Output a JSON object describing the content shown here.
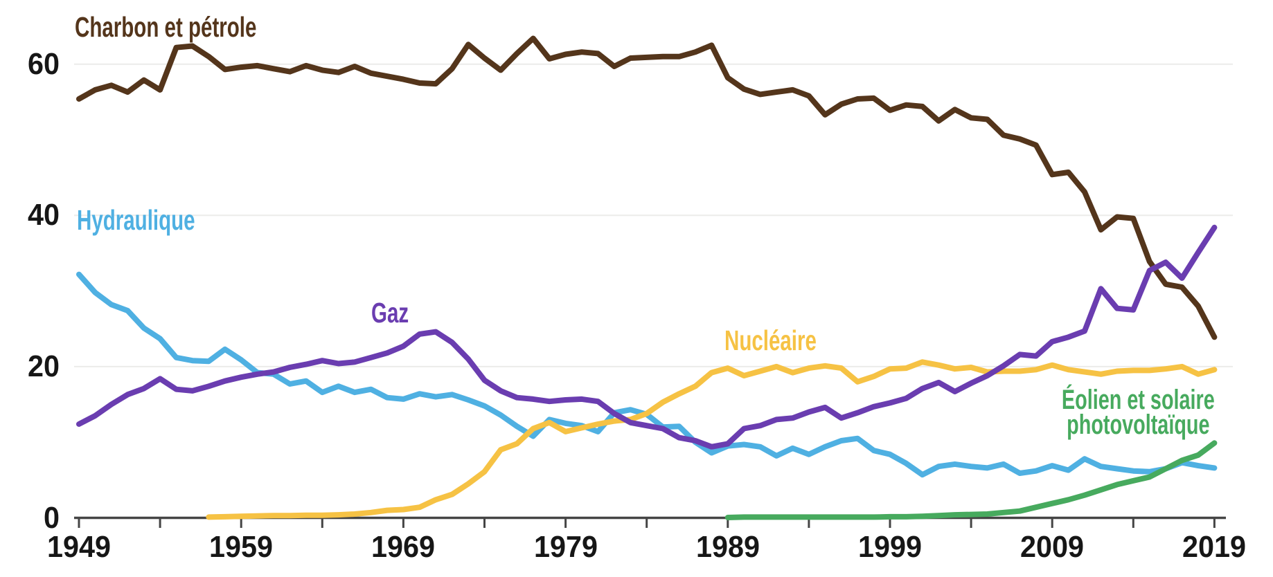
{
  "style": {
    "background": "#ffffff",
    "grid_color": "#ececea",
    "axis_color": "#454545",
    "text_color": "#161616"
  },
  "chart_data": {
    "type": "line",
    "title": "",
    "unit": "%",
    "grid": "horizontal",
    "legend_position": "inline-labels",
    "ylim": [
      0,
      65
    ],
    "y_ticks": [
      60,
      40,
      20,
      0
    ],
    "x_start": 1949,
    "x_end": 2019,
    "x_tick_step": 5,
    "x_tick_labels": [
      1949,
      1959,
      1969,
      1979,
      1989,
      1999,
      2009,
      2019
    ],
    "x": [
      1949,
      1950,
      1951,
      1952,
      1953,
      1954,
      1955,
      1956,
      1957,
      1958,
      1959,
      1960,
      1961,
      1962,
      1963,
      1964,
      1965,
      1966,
      1967,
      1968,
      1969,
      1970,
      1971,
      1972,
      1973,
      1974,
      1975,
      1976,
      1977,
      1978,
      1979,
      1980,
      1981,
      1982,
      1983,
      1984,
      1985,
      1986,
      1987,
      1988,
      1989,
      1990,
      1991,
      1992,
      1993,
      1994,
      1995,
      1996,
      1997,
      1998,
      1999,
      2000,
      2001,
      2002,
      2003,
      2004,
      2005,
      2006,
      2007,
      2008,
      2009,
      2010,
      2011,
      2012,
      2013,
      2014,
      2015,
      2016,
      2017,
      2018,
      2019
    ],
    "series": [
      {
        "name": "charbon-et-petrole",
        "label": "Charbon et pétrole",
        "color": "#54351b",
        "values": [
          55.4,
          56.6,
          57.2,
          56.3,
          57.9,
          56.6,
          62.2,
          62.4,
          61.0,
          59.3,
          59.6,
          59.8,
          59.4,
          59.0,
          59.8,
          59.2,
          58.9,
          59.7,
          58.8,
          58.4,
          58.0,
          57.5,
          57.4,
          59.4,
          62.6,
          60.8,
          59.2,
          61.4,
          63.4,
          60.7,
          61.3,
          61.6,
          61.4,
          59.7,
          60.8,
          60.9,
          61.0,
          61.0,
          61.6,
          62.5,
          58.2,
          56.7,
          56.0,
          56.3,
          56.6,
          55.8,
          53.3,
          54.7,
          55.4,
          55.5,
          53.9,
          54.6,
          54.4,
          52.5,
          54.0,
          52.9,
          52.7,
          50.6,
          50.1,
          49.3,
          45.4,
          45.7,
          43.1,
          38.1,
          39.8,
          39.6,
          33.9,
          30.9,
          30.5,
          28.0,
          23.9
        ]
      },
      {
        "name": "hydraulique",
        "label": "Hydraulique",
        "color": "#4fb0e2",
        "values": [
          32.2,
          29.8,
          28.2,
          27.4,
          25.1,
          23.7,
          21.2,
          20.8,
          20.7,
          22.3,
          20.9,
          19.2,
          19.0,
          17.7,
          18.1,
          16.6,
          17.4,
          16.6,
          17.0,
          15.9,
          15.7,
          16.4,
          16.0,
          16.3,
          15.6,
          14.8,
          13.6,
          12.1,
          10.8,
          13.0,
          12.5,
          12.2,
          11.4,
          13.9,
          14.3,
          13.7,
          12.0,
          12.1,
          10.0,
          8.6,
          9.5,
          9.7,
          9.4,
          8.2,
          9.2,
          8.4,
          9.4,
          10.2,
          10.5,
          8.9,
          8.4,
          7.2,
          5.7,
          6.8,
          7.1,
          6.8,
          6.6,
          7.1,
          5.9,
          6.2,
          6.9,
          6.3,
          7.8,
          6.8,
          6.5,
          6.2,
          6.1,
          6.5,
          7.3,
          6.9,
          6.6
        ]
      },
      {
        "name": "nucleaire",
        "label": "Nucléaire",
        "color": "#f6c244",
        "values": [
          null,
          null,
          null,
          null,
          null,
          null,
          null,
          null,
          0.1,
          0.15,
          0.2,
          0.25,
          0.3,
          0.3,
          0.35,
          0.35,
          0.4,
          0.5,
          0.7,
          1.0,
          1.1,
          1.4,
          2.4,
          3.1,
          4.5,
          6.1,
          9.0,
          9.8,
          11.8,
          12.6,
          11.4,
          11.9,
          12.4,
          12.8,
          13.0,
          13.8,
          15.3,
          16.4,
          17.4,
          19.2,
          19.8,
          18.8,
          19.4,
          20.0,
          19.2,
          19.8,
          20.1,
          19.8,
          18.0,
          18.7,
          19.7,
          19.8,
          20.6,
          20.2,
          19.7,
          19.9,
          19.3,
          19.4,
          19.4,
          19.6,
          20.2,
          19.6,
          19.3,
          19.0,
          19.4,
          19.5,
          19.5,
          19.7,
          20.0,
          19.0,
          19.6
        ]
      },
      {
        "name": "gaz",
        "label": "Gaz",
        "color": "#6a3db0",
        "values": [
          12.4,
          13.5,
          15.0,
          16.3,
          17.1,
          18.4,
          17.0,
          16.8,
          17.4,
          18.1,
          18.6,
          19.0,
          19.3,
          19.9,
          20.3,
          20.8,
          20.4,
          20.6,
          21.2,
          21.8,
          22.7,
          24.3,
          24.6,
          23.2,
          21.0,
          18.2,
          16.8,
          15.9,
          15.7,
          15.4,
          15.6,
          15.7,
          15.4,
          13.8,
          12.6,
          12.2,
          11.8,
          10.6,
          10.2,
          9.4,
          9.8,
          11.8,
          12.2,
          13.0,
          13.2,
          14.0,
          14.6,
          13.2,
          13.9,
          14.7,
          15.2,
          15.8,
          17.1,
          17.9,
          16.7,
          17.8,
          18.8,
          20.1,
          21.6,
          21.4,
          23.3,
          23.9,
          24.7,
          30.3,
          27.7,
          27.5,
          32.7,
          33.8,
          31.7,
          35.1,
          38.4
        ]
      },
      {
        "name": "eolien-et-solaire-photovoltaique",
        "label": "Éolien et solaire photovoltaïque",
        "color": "#47aa5e",
        "values": [
          null,
          null,
          null,
          null,
          null,
          null,
          null,
          null,
          null,
          null,
          null,
          null,
          null,
          null,
          null,
          null,
          null,
          null,
          null,
          null,
          null,
          null,
          null,
          null,
          null,
          null,
          null,
          null,
          null,
          null,
          null,
          null,
          null,
          null,
          null,
          null,
          null,
          null,
          null,
          null,
          0.05,
          0.1,
          0.1,
          0.1,
          0.1,
          0.1,
          0.1,
          0.1,
          0.1,
          0.1,
          0.15,
          0.15,
          0.2,
          0.3,
          0.4,
          0.45,
          0.5,
          0.7,
          0.9,
          1.4,
          1.9,
          2.4,
          3.0,
          3.7,
          4.4,
          4.9,
          5.4,
          6.5,
          7.6,
          8.3,
          9.9
        ]
      }
    ]
  },
  "labels": {
    "eolien_line1": "Éolien et solaire",
    "eolien_line2": "photovoltaïque"
  }
}
